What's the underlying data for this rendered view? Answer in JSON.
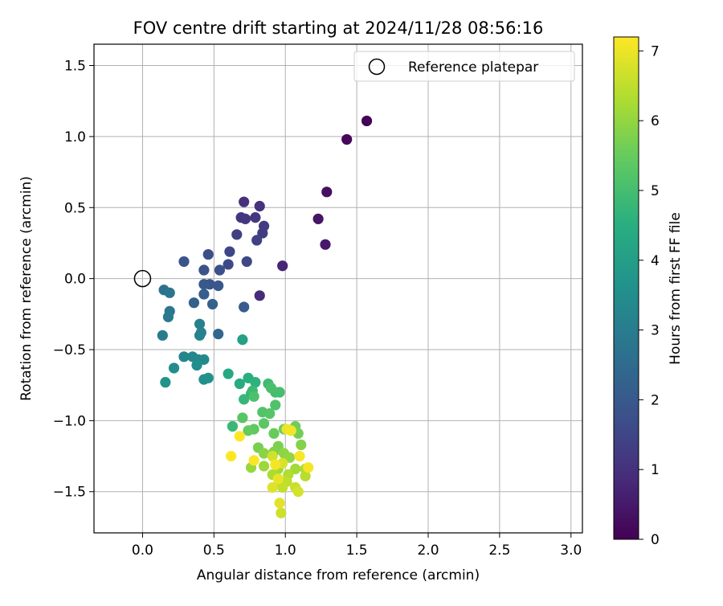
{
  "chart_data": {
    "type": "scatter",
    "title": "FOV centre drift starting at 2024/11/28 08:56:16",
    "xlabel": "Angular distance from reference (arcmin)",
    "ylabel": "Rotation from reference (arcmin)",
    "xlim": [
      -0.34,
      3.08
    ],
    "ylim": [
      -1.79,
      1.65
    ],
    "xticks": [
      "0.0",
      "0.5",
      "1.0",
      "1.5",
      "2.0",
      "2.5",
      "3.0"
    ],
    "xtick_values": [
      0.0,
      0.5,
      1.0,
      1.5,
      2.0,
      2.5,
      3.0
    ],
    "yticks": [
      "−1.5",
      "−1.0",
      "−0.5",
      "0.0",
      "0.5",
      "1.0",
      "1.5"
    ],
    "ytick_values": [
      -1.5,
      -1.0,
      -0.5,
      0.0,
      0.5,
      1.0,
      1.5
    ],
    "grid": true,
    "legend": {
      "placement": "top-right",
      "entries": [
        "Reference platepar"
      ]
    },
    "reference_point": {
      "name": "Reference platepar",
      "x": 0.0,
      "y": 0.0
    },
    "colorbar": {
      "label": "Hours from first FF file",
      "colormap": "viridis",
      "range": [
        0,
        7.2
      ],
      "tick_values": [
        0,
        1,
        2,
        3,
        4,
        5,
        6,
        7
      ],
      "tick_labels": [
        "0",
        "1",
        "2",
        "3",
        "4",
        "5",
        "6",
        "7"
      ]
    },
    "points": [
      {
        "x": 1.57,
        "y": 1.11,
        "c": 0.05
      },
      {
        "x": 1.43,
        "y": 0.98,
        "c": 0.15
      },
      {
        "x": 1.29,
        "y": 0.61,
        "c": 0.3
      },
      {
        "x": 1.23,
        "y": 0.42,
        "c": 0.4
      },
      {
        "x": 1.28,
        "y": 0.24,
        "c": 0.5
      },
      {
        "x": 0.98,
        "y": 0.09,
        "c": 0.75
      },
      {
        "x": 0.82,
        "y": -0.12,
        "c": 0.85
      },
      {
        "x": 0.71,
        "y": 0.54,
        "c": 1.0
      },
      {
        "x": 0.82,
        "y": 0.51,
        "c": 1.05
      },
      {
        "x": 0.69,
        "y": 0.43,
        "c": 1.1
      },
      {
        "x": 0.72,
        "y": 0.42,
        "c": 1.15
      },
      {
        "x": 0.79,
        "y": 0.43,
        "c": 1.2
      },
      {
        "x": 0.85,
        "y": 0.37,
        "c": 1.25
      },
      {
        "x": 0.84,
        "y": 0.32,
        "c": 1.3
      },
      {
        "x": 0.66,
        "y": 0.31,
        "c": 1.35
      },
      {
        "x": 0.8,
        "y": 0.27,
        "c": 1.4
      },
      {
        "x": 0.61,
        "y": 0.19,
        "c": 1.5
      },
      {
        "x": 0.73,
        "y": 0.12,
        "c": 1.55
      },
      {
        "x": 0.6,
        "y": 0.1,
        "c": 1.6
      },
      {
        "x": 0.46,
        "y": 0.17,
        "c": 1.7
      },
      {
        "x": 0.54,
        "y": 0.06,
        "c": 1.75
      },
      {
        "x": 0.43,
        "y": 0.06,
        "c": 1.8
      },
      {
        "x": 0.29,
        "y": 0.12,
        "c": 1.85
      },
      {
        "x": 0.47,
        "y": -0.04,
        "c": 1.9
      },
      {
        "x": 0.53,
        "y": -0.05,
        "c": 1.95
      },
      {
        "x": 0.43,
        "y": -0.04,
        "c": 2.0
      },
      {
        "x": 0.71,
        "y": -0.2,
        "c": 2.05
      },
      {
        "x": 0.43,
        "y": -0.11,
        "c": 2.1
      },
      {
        "x": 0.36,
        "y": -0.17,
        "c": 2.2
      },
      {
        "x": 0.49,
        "y": -0.18,
        "c": 2.25
      },
      {
        "x": 0.53,
        "y": -0.39,
        "c": 2.4
      },
      {
        "x": 0.15,
        "y": -0.08,
        "c": 2.7
      },
      {
        "x": 0.19,
        "y": -0.1,
        "c": 2.8
      },
      {
        "x": 0.19,
        "y": -0.23,
        "c": 2.85
      },
      {
        "x": 0.18,
        "y": -0.27,
        "c": 2.9
      },
      {
        "x": 0.14,
        "y": -0.4,
        "c": 3.0
      },
      {
        "x": 0.4,
        "y": -0.32,
        "c": 3.1
      },
      {
        "x": 0.4,
        "y": -0.4,
        "c": 3.15
      },
      {
        "x": 0.41,
        "y": -0.38,
        "c": 3.2
      },
      {
        "x": 0.29,
        "y": -0.55,
        "c": 3.25
      },
      {
        "x": 0.35,
        "y": -0.55,
        "c": 3.3
      },
      {
        "x": 0.39,
        "y": -0.57,
        "c": 3.35
      },
      {
        "x": 0.43,
        "y": -0.57,
        "c": 3.4
      },
      {
        "x": 0.38,
        "y": -0.61,
        "c": 3.45
      },
      {
        "x": 0.22,
        "y": -0.63,
        "c": 3.5
      },
      {
        "x": 0.43,
        "y": -0.71,
        "c": 3.55
      },
      {
        "x": 0.46,
        "y": -0.7,
        "c": 3.6
      },
      {
        "x": 0.16,
        "y": -0.73,
        "c": 3.65
      },
      {
        "x": 0.7,
        "y": -0.43,
        "c": 4.1
      },
      {
        "x": 0.6,
        "y": -0.67,
        "c": 4.3
      },
      {
        "x": 0.68,
        "y": -0.74,
        "c": 4.4
      },
      {
        "x": 0.74,
        "y": -0.7,
        "c": 4.5
      },
      {
        "x": 0.79,
        "y": -0.73,
        "c": 4.6
      },
      {
        "x": 0.76,
        "y": -0.81,
        "c": 4.7
      },
      {
        "x": 0.71,
        "y": -0.85,
        "c": 4.75
      },
      {
        "x": 0.63,
        "y": -1.04,
        "c": 4.8
      },
      {
        "x": 0.77,
        "y": -0.79,
        "c": 4.85
      },
      {
        "x": 0.88,
        "y": -0.74,
        "c": 4.9
      },
      {
        "x": 0.93,
        "y": -0.8,
        "c": 4.95
      },
      {
        "x": 0.96,
        "y": -0.8,
        "c": 5.0
      },
      {
        "x": 0.9,
        "y": -0.77,
        "c": 5.05
      },
      {
        "x": 0.78,
        "y": -0.83,
        "c": 5.1
      },
      {
        "x": 0.93,
        "y": -0.89,
        "c": 5.15
      },
      {
        "x": 0.84,
        "y": -0.94,
        "c": 5.2
      },
      {
        "x": 0.89,
        "y": -0.95,
        "c": 5.25
      },
      {
        "x": 0.7,
        "y": -0.98,
        "c": 5.3
      },
      {
        "x": 0.85,
        "y": -1.02,
        "c": 5.35
      },
      {
        "x": 0.78,
        "y": -1.06,
        "c": 5.4
      },
      {
        "x": 0.74,
        "y": -1.07,
        "c": 5.45
      },
      {
        "x": 0.92,
        "y": -1.09,
        "c": 5.5
      },
      {
        "x": 0.99,
        "y": -1.06,
        "c": 5.55
      },
      {
        "x": 1.07,
        "y": -1.04,
        "c": 5.6
      },
      {
        "x": 1.09,
        "y": -1.09,
        "c": 5.65
      },
      {
        "x": 0.81,
        "y": -1.19,
        "c": 5.7
      },
      {
        "x": 0.95,
        "y": -1.18,
        "c": 5.75
      },
      {
        "x": 0.92,
        "y": -1.22,
        "c": 5.8
      },
      {
        "x": 1.11,
        "y": -1.17,
        "c": 5.85
      },
      {
        "x": 0.85,
        "y": -1.23,
        "c": 5.9
      },
      {
        "x": 0.99,
        "y": -1.23,
        "c": 5.95
      },
      {
        "x": 1.03,
        "y": -1.26,
        "c": 6.0
      },
      {
        "x": 0.76,
        "y": -1.33,
        "c": 6.05
      },
      {
        "x": 0.85,
        "y": -1.32,
        "c": 6.1
      },
      {
        "x": 0.95,
        "y": -1.34,
        "c": 6.15
      },
      {
        "x": 1.07,
        "y": -1.34,
        "c": 6.2
      },
      {
        "x": 1.14,
        "y": -1.34,
        "c": 6.25
      },
      {
        "x": 0.91,
        "y": -1.38,
        "c": 6.3
      },
      {
        "x": 1.02,
        "y": -1.38,
        "c": 6.35
      },
      {
        "x": 1.14,
        "y": -1.39,
        "c": 6.4
      },
      {
        "x": 0.96,
        "y": -1.44,
        "c": 6.45
      },
      {
        "x": 1.01,
        "y": -1.43,
        "c": 6.5
      },
      {
        "x": 0.98,
        "y": -1.47,
        "c": 6.55
      },
      {
        "x": 1.07,
        "y": -1.47,
        "c": 6.6
      },
      {
        "x": 0.97,
        "y": -1.65,
        "c": 6.65
      },
      {
        "x": 0.91,
        "y": -1.25,
        "c": 6.7
      },
      {
        "x": 1.09,
        "y": -1.5,
        "c": 6.75
      },
      {
        "x": 0.98,
        "y": -1.3,
        "c": 6.8
      },
      {
        "x": 0.91,
        "y": -1.47,
        "c": 6.85
      },
      {
        "x": 0.96,
        "y": -1.58,
        "c": 6.9
      },
      {
        "x": 0.95,
        "y": -1.41,
        "c": 6.95
      },
      {
        "x": 1.01,
        "y": -1.06,
        "c": 7.0
      },
      {
        "x": 1.04,
        "y": -1.07,
        "c": 7.05
      },
      {
        "x": 0.93,
        "y": -1.31,
        "c": 7.1
      },
      {
        "x": 0.78,
        "y": -1.28,
        "c": 7.15
      },
      {
        "x": 1.1,
        "y": -1.25,
        "c": 7.15
      },
      {
        "x": 1.16,
        "y": -1.33,
        "c": 7.1
      },
      {
        "x": 0.62,
        "y": -1.25,
        "c": 7.2
      },
      {
        "x": 0.68,
        "y": -1.11,
        "c": 7.2
      }
    ]
  }
}
